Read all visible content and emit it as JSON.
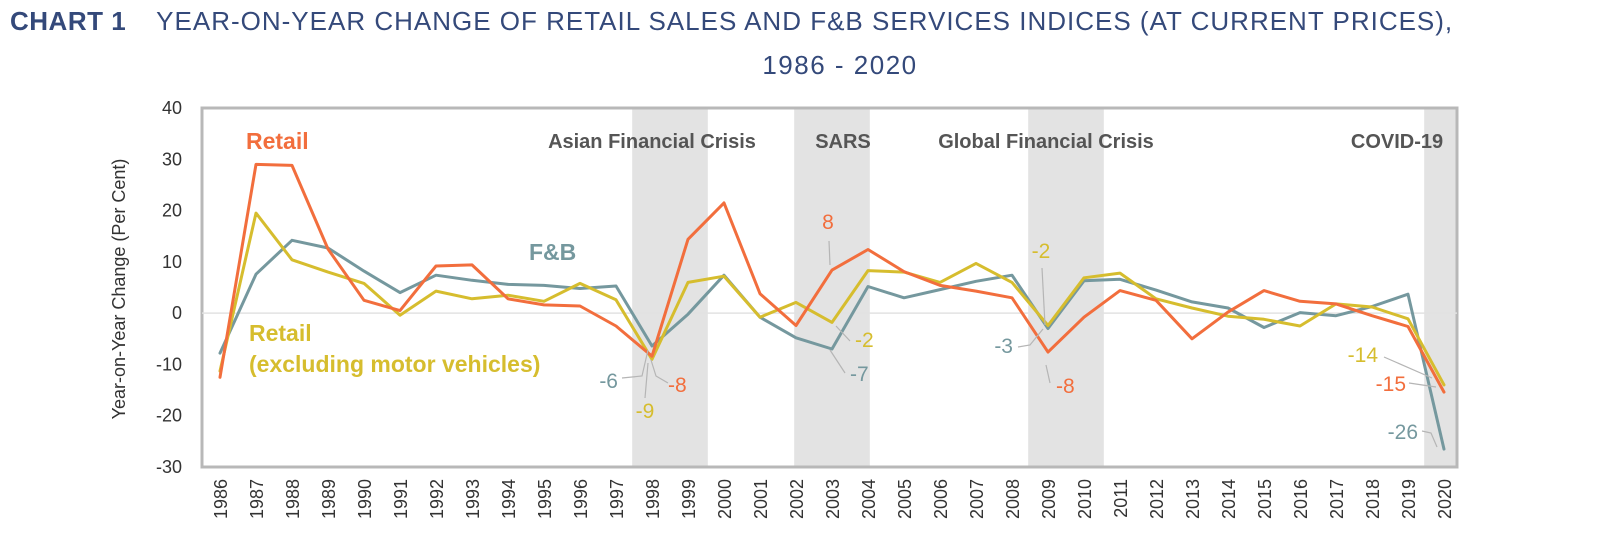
{
  "header": {
    "chart_label": "CHART 1",
    "title_line1": "YEAR-ON-YEAR CHANGE OF RETAIL SALES AND F&B SERVICES INDICES (AT CURRENT PRICES),",
    "title_line2": "1986 - 2020"
  },
  "colors": {
    "retail": "#f26e3d",
    "retail_ex": "#d6bd2e",
    "fnb": "#75989e",
    "shade": "#e3e3e3",
    "axis": "#b8b8b8"
  },
  "chart_data": {
    "type": "line",
    "ylabel": "Year-on-Year Change (Per Cent)",
    "ylim": [
      -30,
      40
    ],
    "yticks": [
      -30,
      -20,
      -10,
      0,
      10,
      20,
      30,
      40
    ],
    "x": [
      1986,
      1987,
      1988,
      1989,
      1990,
      1991,
      1992,
      1993,
      1994,
      1995,
      1996,
      1997,
      1998,
      1999,
      2000,
      2001,
      2002,
      2003,
      2004,
      2005,
      2006,
      2007,
      2008,
      2009,
      2010,
      2011,
      2012,
      2013,
      2014,
      2015,
      2016,
      2017,
      2018,
      2019,
      2020
    ],
    "series": [
      {
        "name": "Retail",
        "color": "#f26e3d",
        "values": [
          -12.5,
          29,
          28.8,
          12.5,
          2.5,
          0.5,
          9.2,
          9.4,
          2.8,
          1.6,
          1.4,
          -2.5,
          -8.4,
          14.4,
          21.5,
          3.8,
          -2.4,
          8.4,
          12.4,
          8.1,
          5.4,
          4.3,
          3,
          -7.6,
          -0.8,
          4.4,
          2.5,
          -5,
          0.2,
          4.4,
          2.3,
          1.8,
          -0.5,
          -2.6,
          -15.4
        ]
      },
      {
        "name": "Retail\n(excluding motor vehicles)",
        "color": "#d6bd2e",
        "values": [
          -11.3,
          19.5,
          10.4,
          8,
          5.8,
          -0.4,
          4.3,
          2.8,
          3.5,
          2.3,
          5.8,
          2.6,
          -9,
          6,
          7.2,
          -0.8,
          2.1,
          -1.8,
          8.3,
          8,
          6,
          9.7,
          6,
          -2.4,
          6.9,
          7.8,
          2.8,
          1,
          -0.6,
          -1.2,
          -2.5,
          1.8,
          1.2,
          -1.1,
          -14
        ]
      },
      {
        "name": "F&B",
        "color": "#75989e",
        "values": [
          -7.8,
          7.6,
          14.2,
          12.7,
          8.2,
          4,
          7.4,
          6.4,
          5.6,
          5.4,
          4.8,
          5.3,
          -6.4,
          -0.2,
          7.4,
          -0.8,
          -4.8,
          -7,
          5.2,
          3,
          4.6,
          6.2,
          7.4,
          -3,
          6.3,
          6.6,
          4.5,
          2.2,
          1,
          -2.8,
          0.1,
          -0.5,
          1.3,
          3.7,
          -26.5
        ]
      }
    ],
    "shaded_periods": [
      {
        "label": "Asian Financial Crisis",
        "from": 1998,
        "to": 1999
      },
      {
        "label": "SARS",
        "from": 2002.5,
        "to": 2003.5
      },
      {
        "label": "Global Financial Crisis",
        "from": 2009,
        "to": 2010
      },
      {
        "label": "COVID-19",
        "from": 2020,
        "to": 2020
      }
    ],
    "annotations": [
      {
        "text": "8",
        "series": "Retail",
        "year": 2003
      },
      {
        "text": "-2",
        "series": "Retail (excluding motor vehicles)",
        "year": 2003
      },
      {
        "text": "-7",
        "series": "F&B",
        "year": 2003
      },
      {
        "text": "-6",
        "series": "F&B",
        "year": 1998
      },
      {
        "text": "-9",
        "series": "Retail (excluding motor vehicles)",
        "year": 1998
      },
      {
        "text": "-8",
        "series": "Retail",
        "year": 1998
      },
      {
        "text": "-2",
        "series": "Retail (excluding motor vehicles)",
        "year": 2009
      },
      {
        "text": "-3",
        "series": "F&B",
        "year": 2009
      },
      {
        "text": "-8",
        "series": "Retail",
        "year": 2009
      },
      {
        "text": "-14",
        "series": "Retail (excluding motor vehicles)",
        "year": 2020
      },
      {
        "text": "-15",
        "series": "Retail",
        "year": 2020
      },
      {
        "text": "-26",
        "series": "F&B",
        "year": 2020
      }
    ],
    "grid": "zero-line only",
    "legend": "inline labels"
  }
}
